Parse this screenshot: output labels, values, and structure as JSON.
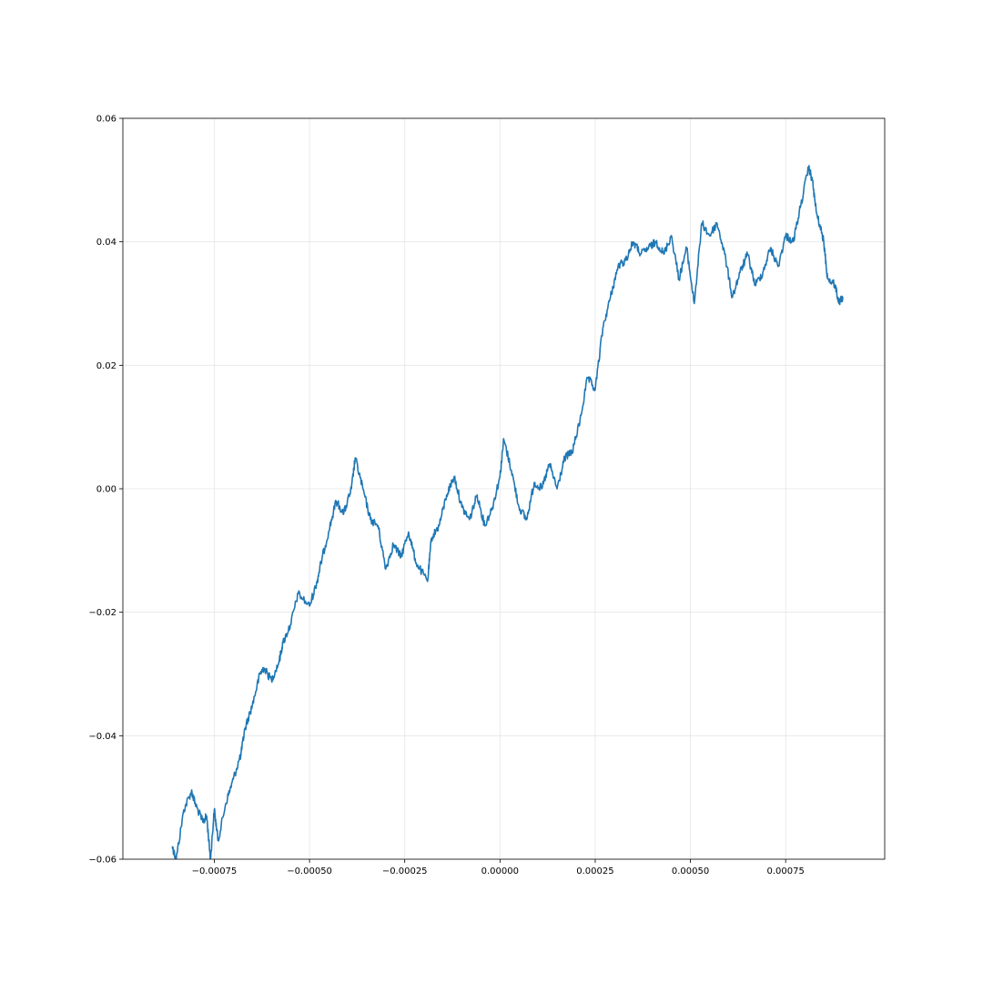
{
  "chart_data": {
    "type": "line",
    "title": "",
    "xlabel": "",
    "ylabel": "",
    "grid": true,
    "xlim": [
      -0.00099,
      0.00101
    ],
    "ylim": [
      -0.06,
      0.06
    ],
    "x_ticks": [
      -0.00075,
      -0.0005,
      -0.00025,
      0.0,
      0.00025,
      0.0005,
      0.00075
    ],
    "x_tick_labels": [
      "−0.00075",
      "−0.00050",
      "−0.00025",
      "0.00000",
      "0.00025",
      "0.00050",
      "0.00075"
    ],
    "y_ticks": [
      -0.06,
      -0.04,
      -0.02,
      0.0,
      0.02,
      0.04,
      0.06
    ],
    "y_tick_labels": [
      "−0.06",
      "−0.04",
      "−0.02",
      "0.00",
      "0.02",
      "0.04",
      "0.06"
    ],
    "series": [
      {
        "color": "#1f77b4",
        "x": [
          -0.00086,
          -0.00085,
          -0.00083,
          -0.00081,
          -0.0008,
          -0.00078,
          -0.00077,
          -0.00076,
          -0.00075,
          -0.00074,
          -0.00072,
          -0.0007,
          -0.00068,
          -0.00067,
          -0.00065,
          -0.00063,
          -0.00062,
          -0.0006,
          -0.00058,
          -0.00057,
          -0.00055,
          -0.00053,
          -0.0005,
          -0.00048,
          -0.00047,
          -0.00045,
          -0.00043,
          -0.00041,
          -0.00039,
          -0.00038,
          -0.00036,
          -0.00034,
          -0.00032,
          -0.0003,
          -0.00028,
          -0.00026,
          -0.00024,
          -0.00022,
          -0.00019,
          -0.00018,
          -0.00016,
          -0.00014,
          -0.00012,
          -0.0001,
          -8e-05,
          -6e-05,
          -4e-05,
          -2e-05,
          0.0,
          1e-05,
          3e-05,
          5e-05,
          7e-05,
          9e-05,
          0.00011,
          0.00013,
          0.00015,
          0.00017,
          0.00019,
          0.00021,
          0.00023,
          0.00025,
          0.00027,
          0.00029,
          0.00031,
          0.00033,
          0.00035,
          0.00037,
          0.00039,
          0.00041,
          0.00043,
          0.00045,
          0.00047,
          0.00049,
          0.00051,
          0.00053,
          0.00055,
          0.00057,
          0.00059,
          0.00061,
          0.00063,
          0.00065,
          0.00067,
          0.00069,
          0.00071,
          0.00073,
          0.00075,
          0.00077,
          0.00079,
          0.00081,
          0.00082,
          0.00083,
          0.00085,
          0.00086,
          0.00088,
          0.00089,
          0.0009
        ],
        "y": [
          -0.058,
          -0.06,
          -0.052,
          -0.049,
          -0.051,
          -0.054,
          -0.053,
          -0.06,
          -0.052,
          -0.057,
          -0.051,
          -0.047,
          -0.043,
          -0.039,
          -0.035,
          -0.03,
          -0.029,
          -0.031,
          -0.028,
          -0.025,
          -0.022,
          -0.017,
          -0.019,
          -0.015,
          -0.012,
          -0.007,
          -0.002,
          -0.004,
          0.0,
          0.005,
          0.0,
          -0.005,
          -0.006,
          -0.013,
          -0.009,
          -0.011,
          -0.007,
          -0.012,
          -0.015,
          -0.008,
          -0.006,
          -0.001,
          0.002,
          -0.003,
          -0.005,
          -0.001,
          -0.006,
          -0.003,
          0.002,
          0.008,
          0.003,
          -0.003,
          -0.005,
          0.001,
          0.0,
          0.004,
          0.0,
          0.005,
          0.006,
          0.011,
          0.018,
          0.016,
          0.026,
          0.031,
          0.036,
          0.037,
          0.04,
          0.038,
          0.039,
          0.04,
          0.038,
          0.041,
          0.034,
          0.039,
          0.03,
          0.043,
          0.041,
          0.043,
          0.038,
          0.031,
          0.035,
          0.038,
          0.033,
          0.035,
          0.039,
          0.036,
          0.041,
          0.04,
          0.046,
          0.052,
          0.05,
          0.045,
          0.04,
          0.034,
          0.033,
          0.03,
          0.031
        ]
      }
    ]
  }
}
